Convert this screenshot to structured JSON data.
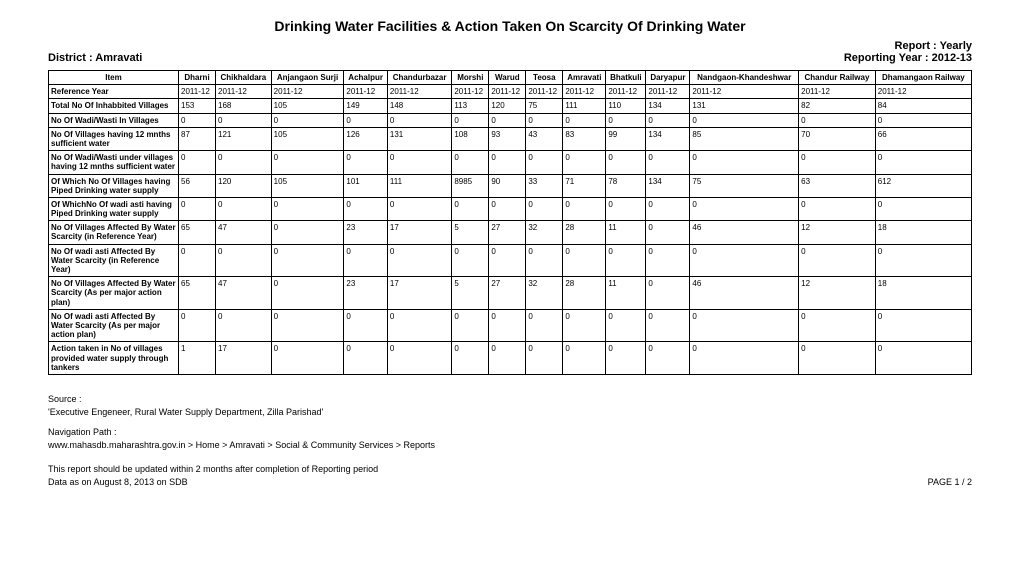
{
  "title": "Drinking Water Facilities & Action Taken On Scarcity Of Drinking Water",
  "report_label": "Report : Yearly",
  "district_label": "District : Amravati",
  "reporting_year_label": "Reporting Year : 2012-13",
  "columns": [
    "Item",
    "Dharni",
    "Chikhaldara",
    "Anjangaon Surji",
    "Achalpur",
    "Chandurbazar",
    "Morshi",
    "Warud",
    "Teosa",
    "Amravati",
    "Bhatkuli",
    "Daryapur",
    "Nandgaon-Khandeshwar",
    "Chandur Railway",
    "Dhamangaon Railway"
  ],
  "rows": [
    {
      "label": "Reference Year",
      "values": [
        "2011-12",
        "2011-12",
        "2011-12",
        "2011-12",
        "2011-12",
        "2011-12",
        "2011-12",
        "2011-12",
        "2011-12",
        "2011-12",
        "2011-12",
        "2011-12",
        "2011-12",
        "2011-12"
      ]
    },
    {
      "label": "Total No Of Inhabbited Villages",
      "values": [
        "153",
        "168",
        "105",
        "149",
        "148",
        "113",
        "120",
        "75",
        "111",
        "110",
        "134",
        "131",
        "82",
        "84"
      ]
    },
    {
      "label": "No Of Wadi/Wasti In Villages",
      "values": [
        "0",
        "0",
        "0",
        "0",
        "0",
        "0",
        "0",
        "0",
        "0",
        "0",
        "0",
        "0",
        "0",
        "0"
      ]
    },
    {
      "label": "No Of Villages having 12 mnths sufficient water",
      "values": [
        "87",
        "121",
        "105",
        "126",
        "131",
        "108",
        "93",
        "43",
        "83",
        "99",
        "134",
        "85",
        "70",
        "66"
      ]
    },
    {
      "label": "No Of Wadi/Wasti under villages having 12 mnths sufficient water",
      "values": [
        "0",
        "0",
        "0",
        "0",
        "0",
        "0",
        "0",
        "0",
        "0",
        "0",
        "0",
        "0",
        "0",
        "0"
      ]
    },
    {
      "label": "Of Which No Of Villages having Piped Drinking water supply",
      "values": [
        "56",
        "120",
        "105",
        "101",
        "111",
        "8985",
        "90",
        "33",
        "71",
        "78",
        "134",
        "75",
        "63",
        "612"
      ]
    },
    {
      "label": "Of WhichNo Of wadi asti having Piped Drinking water supply",
      "values": [
        "0",
        "0",
        "0",
        "0",
        "0",
        "0",
        "0",
        "0",
        "0",
        "0",
        "0",
        "0",
        "0",
        "0"
      ]
    },
    {
      "label": "No Of Villages Affected By Water Scarcity (in Reference Year)",
      "values": [
        "65",
        "47",
        "0",
        "23",
        "17",
        "5",
        "27",
        "32",
        "28",
        "11",
        "0",
        "46",
        "12",
        "18"
      ]
    },
    {
      "label": "No Of wadi asti Affected By Water Scarcity (in Reference Year)",
      "values": [
        "0",
        "0",
        "0",
        "0",
        "0",
        "0",
        "0",
        "0",
        "0",
        "0",
        "0",
        "0",
        "0",
        "0"
      ]
    },
    {
      "label": "No Of Villages Affected By Water Scarcity (As per major action plan)",
      "values": [
        "65",
        "47",
        "0",
        "23",
        "17",
        "5",
        "27",
        "32",
        "28",
        "11",
        "0",
        "46",
        "12",
        "18"
      ]
    },
    {
      "label": "No Of wadi asti Affected By Water Scarcity  (As per major action plan)",
      "values": [
        "0",
        "0",
        "0",
        "0",
        "0",
        "0",
        "0",
        "0",
        "0",
        "0",
        "0",
        "0",
        "0",
        "0"
      ]
    },
    {
      "label": "Action taken in No of villages provided water supply through tankers",
      "values": [
        "1",
        "17",
        "0",
        "0",
        "0",
        "0",
        "0",
        "0",
        "0",
        "0",
        "0",
        "0",
        "0",
        "0"
      ]
    }
  ],
  "footer": {
    "source_label": "Source :",
    "source_text": "'Executive Engeneer, Rural Water Supply Department, Zilla Parishad'",
    "nav_label": "Navigation Path :",
    "nav_text": "www.mahasdb.maharashtra.gov.in > Home > Amravati > Social & Community Services > Reports",
    "update_line": "This report should be updated within 2 months after completion of Reporting period",
    "data_date": "Data as on August 8, 2013 on SDB",
    "page_num": "PAGE 1 / 2"
  }
}
